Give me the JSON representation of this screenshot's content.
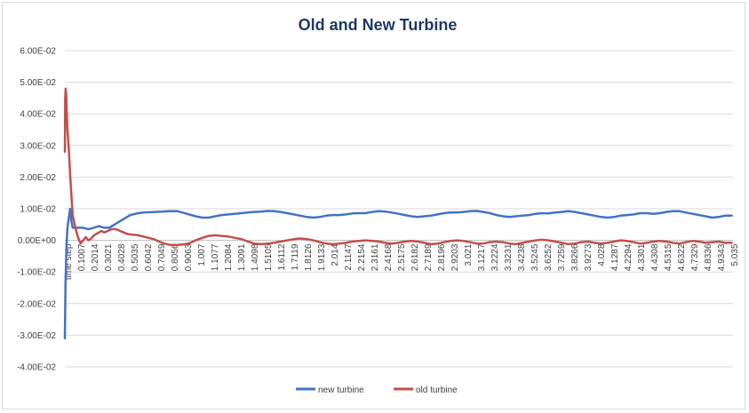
{
  "chart_data": {
    "type": "line",
    "title": "Old and New Turbine",
    "xlabel": "",
    "ylabel": "",
    "ylim": [
      -0.04,
      0.06
    ],
    "y_ticks": [
      "6.00E-02",
      "5.00E-02",
      "4.00E-02",
      "3.00E-02",
      "2.00E-02",
      "1.00E-02",
      "0.00E+00",
      "-1.00E-02",
      "-2.00E-02",
      "-3.00E-02",
      "-4.00E-02"
    ],
    "y_tick_values": [
      0.06,
      0.05,
      0.04,
      0.03,
      0.02,
      0.01,
      0.0,
      -0.01,
      -0.02,
      -0.03,
      -0.04
    ],
    "x_tick_labels": [
      "time step",
      "0.1007",
      "0.2014",
      "0.3021",
      "0.4028",
      "0.5035",
      "0.6042",
      "0.7049",
      "0.8056",
      "0.9063",
      "1.007",
      "1.1077",
      "1.2084",
      "1.3091",
      "1.4098",
      "1.5105",
      "1.6112",
      "1.7119",
      "1.8126",
      "1.9133",
      "2.014",
      "2.1147",
      "2.2154",
      "2.3161",
      "2.4168",
      "2.5175",
      "2.6182",
      "2.7189",
      "2.8196",
      "2.9203",
      "3.021",
      "3.1217",
      "3.2224",
      "3.3231",
      "3.4238",
      "3.5245",
      "3.6252",
      "3.7259",
      "3.8266",
      "3.9273",
      "4.028",
      "4.1287",
      "4.2294",
      "4.3301",
      "4.4308",
      "4.5315",
      "4.6322",
      "4.7329",
      "4.8336",
      "4.9343",
      "5.035"
    ],
    "x_range": [
      0,
      5.11
    ],
    "grid": true,
    "legend_position": "bottom",
    "series": [
      {
        "name": "new turbine",
        "color": "#4472c4",
        "points": [
          [
            0,
            -0.031
          ],
          [
            0.005,
            -0.014
          ],
          [
            0.012,
            -0.002
          ],
          [
            0.02,
            0.004
          ],
          [
            0.03,
            0.007
          ],
          [
            0.04,
            0.01
          ],
          [
            0.05,
            0.006
          ],
          [
            0.06,
            0.004
          ],
          [
            0.08,
            0.004
          ],
          [
            0.1,
            0.004
          ],
          [
            0.14,
            0.004
          ],
          [
            0.18,
            0.0035
          ],
          [
            0.22,
            0.004
          ],
          [
            0.26,
            0.0045
          ],
          [
            0.3,
            0.004
          ],
          [
            0.34,
            0.004
          ],
          [
            0.38,
            0.005
          ],
          [
            0.42,
            0.006
          ],
          [
            0.46,
            0.007
          ],
          [
            0.5,
            0.008
          ],
          [
            0.55,
            0.0085
          ],
          [
            0.6,
            0.0088
          ],
          [
            0.7,
            0.009
          ],
          [
            0.8,
            0.0092
          ],
          [
            0.86,
            0.0092
          ],
          [
            0.9,
            0.0088
          ],
          [
            0.95,
            0.0082
          ],
          [
            1.0,
            0.0076
          ],
          [
            1.05,
            0.0072
          ],
          [
            1.1,
            0.0072
          ],
          [
            1.15,
            0.0076
          ],
          [
            1.2,
            0.008
          ],
          [
            1.25,
            0.0082
          ],
          [
            1.3,
            0.0084
          ],
          [
            1.35,
            0.0086
          ],
          [
            1.4,
            0.0088
          ],
          [
            1.45,
            0.009
          ],
          [
            1.5,
            0.0091
          ],
          [
            1.55,
            0.0093
          ],
          [
            1.6,
            0.0092
          ],
          [
            1.65,
            0.009
          ],
          [
            1.7,
            0.0086
          ],
          [
            1.75,
            0.0082
          ],
          [
            1.8,
            0.0078
          ],
          [
            1.85,
            0.0074
          ],
          [
            1.9,
            0.0072
          ],
          [
            1.95,
            0.0074
          ],
          [
            2.0,
            0.0078
          ],
          [
            2.05,
            0.008
          ],
          [
            2.1,
            0.008
          ],
          [
            2.15,
            0.0082
          ],
          [
            2.2,
            0.0085
          ],
          [
            2.25,
            0.0086
          ],
          [
            2.3,
            0.0086
          ],
          [
            2.35,
            0.009
          ],
          [
            2.4,
            0.0092
          ],
          [
            2.45,
            0.0091
          ],
          [
            2.5,
            0.0088
          ],
          [
            2.55,
            0.0084
          ],
          [
            2.6,
            0.008
          ],
          [
            2.65,
            0.0076
          ],
          [
            2.7,
            0.0074
          ],
          [
            2.75,
            0.0076
          ],
          [
            2.8,
            0.0078
          ],
          [
            2.85,
            0.0082
          ],
          [
            2.9,
            0.0086
          ],
          [
            2.95,
            0.0088
          ],
          [
            3.0,
            0.0088
          ],
          [
            3.05,
            0.009
          ],
          [
            3.1,
            0.0092
          ],
          [
            3.15,
            0.0093
          ],
          [
            3.2,
            0.009
          ],
          [
            3.25,
            0.0086
          ],
          [
            3.3,
            0.008
          ],
          [
            3.35,
            0.0076
          ],
          [
            3.4,
            0.0074
          ],
          [
            3.45,
            0.0076
          ],
          [
            3.5,
            0.0078
          ],
          [
            3.55,
            0.008
          ],
          [
            3.6,
            0.0084
          ],
          [
            3.65,
            0.0086
          ],
          [
            3.7,
            0.0085
          ],
          [
            3.75,
            0.0088
          ],
          [
            3.8,
            0.009
          ],
          [
            3.85,
            0.0092
          ],
          [
            3.9,
            0.009
          ],
          [
            3.95,
            0.0086
          ],
          [
            4.0,
            0.0082
          ],
          [
            4.05,
            0.0078
          ],
          [
            4.1,
            0.0074
          ],
          [
            4.15,
            0.0072
          ],
          [
            4.2,
            0.0074
          ],
          [
            4.25,
            0.0078
          ],
          [
            4.3,
            0.008
          ],
          [
            4.35,
            0.0082
          ],
          [
            4.4,
            0.0086
          ],
          [
            4.45,
            0.0086
          ],
          [
            4.5,
            0.0084
          ],
          [
            4.55,
            0.0086
          ],
          [
            4.6,
            0.009
          ],
          [
            4.65,
            0.0092
          ],
          [
            4.7,
            0.0092
          ],
          [
            4.75,
            0.0088
          ],
          [
            4.8,
            0.0084
          ],
          [
            4.85,
            0.008
          ],
          [
            4.9,
            0.0076
          ],
          [
            4.95,
            0.0072
          ],
          [
            5.0,
            0.0074
          ],
          [
            5.05,
            0.0078
          ],
          [
            5.1,
            0.0078
          ]
        ]
      },
      {
        "name": "old turbine",
        "color": "#c0504d",
        "points": [
          [
            0,
            0.028
          ],
          [
            0.003,
            0.045
          ],
          [
            0.006,
            0.048
          ],
          [
            0.01,
            0.046
          ],
          [
            0.015,
            0.04
          ],
          [
            0.02,
            0.035
          ],
          [
            0.03,
            0.029
          ],
          [
            0.04,
            0.021
          ],
          [
            0.05,
            0.014
          ],
          [
            0.06,
            0.008
          ],
          [
            0.08,
            0.004
          ],
          [
            0.1,
            0.001
          ],
          [
            0.12,
            -0.001
          ],
          [
            0.14,
            0.0
          ],
          [
            0.16,
            0.001
          ],
          [
            0.18,
            0.0
          ],
          [
            0.2,
            0.0005
          ],
          [
            0.22,
            0.0015
          ],
          [
            0.24,
            0.002
          ],
          [
            0.26,
            0.0025
          ],
          [
            0.28,
            0.003
          ],
          [
            0.3,
            0.0025
          ],
          [
            0.32,
            0.0028
          ],
          [
            0.34,
            0.0032
          ],
          [
            0.36,
            0.0035
          ],
          [
            0.38,
            0.0036
          ],
          [
            0.4,
            0.0034
          ],
          [
            0.42,
            0.003
          ],
          [
            0.45,
            0.0025
          ],
          [
            0.48,
            0.002
          ],
          [
            0.52,
            0.0018
          ],
          [
            0.56,
            0.0016
          ],
          [
            0.6,
            0.0012
          ],
          [
            0.64,
            0.0008
          ],
          [
            0.68,
            0.0004
          ],
          [
            0.72,
            -0.0004
          ],
          [
            0.76,
            -0.001
          ],
          [
            0.8,
            -0.0014
          ],
          [
            0.86,
            -0.0015
          ],
          [
            0.92,
            -0.0012
          ],
          [
            0.96,
            -0.0008
          ],
          [
            1.0,
            0.0
          ],
          [
            1.05,
            0.0008
          ],
          [
            1.1,
            0.0014
          ],
          [
            1.15,
            0.0016
          ],
          [
            1.2,
            0.0014
          ],
          [
            1.25,
            0.0012
          ],
          [
            1.3,
            0.0008
          ],
          [
            1.35,
            0.0004
          ],
          [
            1.4,
            -0.0004
          ],
          [
            1.45,
            -0.001
          ],
          [
            1.5,
            -0.0012
          ],
          [
            1.55,
            -0.001
          ],
          [
            1.6,
            -0.0008
          ],
          [
            1.65,
            -0.0004
          ],
          [
            1.7,
            0.0
          ],
          [
            1.75,
            0.0004
          ],
          [
            1.8,
            0.0006
          ],
          [
            1.85,
            0.0004
          ],
          [
            1.9,
            0.0
          ],
          [
            1.95,
            -0.0006
          ],
          [
            2.0,
            -0.001
          ],
          [
            2.05,
            -0.0012
          ],
          [
            2.1,
            -0.001
          ],
          [
            2.15,
            -0.0008
          ],
          [
            2.2,
            -0.0004
          ],
          [
            2.25,
            -0.0002
          ],
          [
            2.3,
            0.0
          ],
          [
            2.35,
            -0.0002
          ],
          [
            2.4,
            -0.0004
          ],
          [
            2.45,
            -0.0008
          ],
          [
            2.5,
            -0.001
          ],
          [
            2.55,
            -0.0008
          ],
          [
            2.6,
            -0.0004
          ],
          [
            2.65,
            -0.0002
          ],
          [
            2.7,
            -0.0004
          ],
          [
            2.75,
            -0.0008
          ],
          [
            2.8,
            -0.0012
          ],
          [
            2.85,
            -0.001
          ],
          [
            2.9,
            -0.0006
          ],
          [
            2.95,
            -0.0002
          ],
          [
            3.0,
            0.0
          ],
          [
            3.05,
            -0.0002
          ],
          [
            3.1,
            -0.0006
          ],
          [
            3.15,
            -0.001
          ],
          [
            3.2,
            -0.001
          ],
          [
            3.25,
            -0.0006
          ],
          [
            3.3,
            -0.0004
          ],
          [
            3.35,
            -0.0006
          ],
          [
            3.4,
            -0.001
          ],
          [
            3.45,
            -0.0012
          ],
          [
            3.5,
            -0.0008
          ],
          [
            3.55,
            -0.0004
          ],
          [
            3.6,
            0.0
          ],
          [
            3.65,
            0.0002
          ],
          [
            3.7,
            0.0
          ],
          [
            3.75,
            -0.0004
          ],
          [
            3.8,
            -0.0008
          ],
          [
            3.85,
            -0.0012
          ],
          [
            3.9,
            -0.001
          ],
          [
            3.95,
            -0.0006
          ],
          [
            4.0,
            -0.0004
          ],
          [
            4.05,
            -0.0008
          ],
          [
            4.1,
            -0.001
          ],
          [
            4.15,
            -0.0008
          ],
          [
            4.2,
            -0.0004
          ],
          [
            4.25,
            0.0
          ],
          [
            4.3,
            -0.0002
          ],
          [
            4.35,
            -0.0006
          ],
          [
            4.4,
            -0.001
          ],
          [
            4.45,
            -0.0008
          ],
          [
            4.5,
            -0.0004
          ],
          [
            4.55,
            -0.0002
          ],
          [
            4.6,
            -0.0004
          ],
          [
            4.65,
            -0.0008
          ],
          [
            4.7,
            -0.001
          ],
          [
            4.75,
            -0.0006
          ],
          [
            4.8,
            -0.0002
          ],
          [
            4.85,
            -0.0004
          ],
          [
            4.9,
            -0.0008
          ],
          [
            4.95,
            -0.0006
          ],
          [
            5.0,
            -0.0004
          ],
          [
            5.05,
            -0.0008
          ],
          [
            5.1,
            -0.0008
          ]
        ]
      }
    ]
  }
}
